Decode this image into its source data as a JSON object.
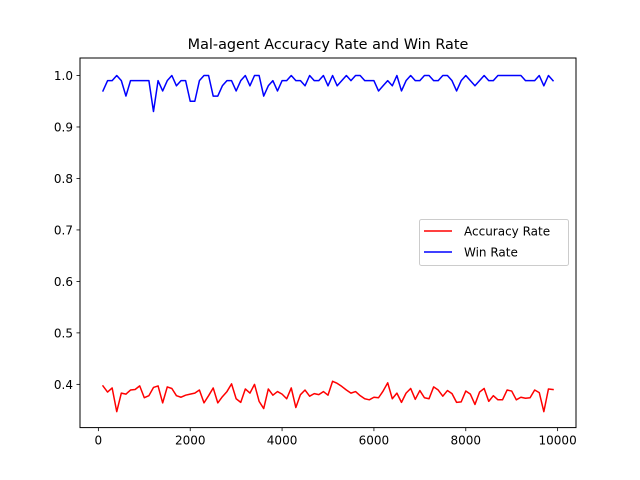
{
  "chart_data": {
    "type": "line",
    "title": "Mal-agent Accuracy Rate and Win Rate",
    "xlabel": "",
    "ylabel": "",
    "xlim": [
      -400,
      10400
    ],
    "ylim": [
      0.316,
      1.034
    ],
    "xticks": [
      0,
      2000,
      4000,
      6000,
      8000,
      10000
    ],
    "xtick_labels": [
      "0",
      "2000",
      "4000",
      "6000",
      "8000",
      "10000"
    ],
    "yticks": [
      0.4,
      0.5,
      0.6,
      0.7,
      0.8,
      0.9,
      1.0
    ],
    "ytick_labels": [
      "0.4",
      "0.5",
      "0.6",
      "0.7",
      "0.8",
      "0.9",
      "1.0"
    ],
    "grid": false,
    "legend_position": "center-right",
    "x": [
      100,
      200,
      300,
      400,
      500,
      600,
      700,
      800,
      900,
      1000,
      1100,
      1200,
      1300,
      1400,
      1500,
      1600,
      1700,
      1800,
      1900,
      2000,
      2100,
      2200,
      2300,
      2400,
      2500,
      2600,
      2700,
      2800,
      2900,
      3000,
      3100,
      3200,
      3300,
      3400,
      3500,
      3600,
      3700,
      3800,
      3900,
      4000,
      4100,
      4200,
      4300,
      4400,
      4500,
      4600,
      4700,
      4800,
      4900,
      5000,
      5100,
      5200,
      5300,
      5400,
      5500,
      5600,
      5700,
      5800,
      5900,
      6000,
      6100,
      6200,
      6300,
      6400,
      6500,
      6600,
      6700,
      6800,
      6900,
      7000,
      7100,
      7200,
      7300,
      7400,
      7500,
      7600,
      7700,
      7800,
      7900,
      8000,
      8100,
      8200,
      8300,
      8400,
      8500,
      8600,
      8700,
      8800,
      8900,
      9000,
      9100,
      9200,
      9300,
      9400,
      9500,
      9600,
      9700,
      9800,
      9900
    ],
    "series": [
      {
        "name": "Accuracy Rate",
        "color": "#ff0000",
        "values": [
          0.397,
          0.385,
          0.393,
          0.347,
          0.383,
          0.381,
          0.389,
          0.39,
          0.397,
          0.374,
          0.378,
          0.394,
          0.397,
          0.364,
          0.395,
          0.392,
          0.378,
          0.375,
          0.379,
          0.381,
          0.383,
          0.389,
          0.364,
          0.378,
          0.393,
          0.364,
          0.376,
          0.386,
          0.401,
          0.372,
          0.365,
          0.391,
          0.383,
          0.4,
          0.367,
          0.353,
          0.391,
          0.379,
          0.386,
          0.381,
          0.372,
          0.393,
          0.355,
          0.38,
          0.389,
          0.377,
          0.382,
          0.38,
          0.386,
          0.379,
          0.406,
          0.402,
          0.396,
          0.389,
          0.383,
          0.386,
          0.378,
          0.372,
          0.37,
          0.375,
          0.374,
          0.387,
          0.403,
          0.372,
          0.383,
          0.365,
          0.383,
          0.392,
          0.371,
          0.388,
          0.374,
          0.372,
          0.395,
          0.389,
          0.377,
          0.388,
          0.382,
          0.365,
          0.366,
          0.387,
          0.381,
          0.361,
          0.385,
          0.392,
          0.367,
          0.378,
          0.37,
          0.37,
          0.389,
          0.387,
          0.37,
          0.375,
          0.373,
          0.374,
          0.389,
          0.384,
          0.347,
          0.391,
          0.39
        ]
      },
      {
        "name": "Win Rate",
        "color": "#0000ff",
        "values": [
          0.97,
          0.99,
          0.99,
          1.0,
          0.99,
          0.96,
          0.99,
          0.99,
          0.99,
          0.99,
          0.99,
          0.93,
          0.99,
          0.97,
          0.99,
          1.0,
          0.98,
          0.99,
          0.99,
          0.95,
          0.95,
          0.99,
          1.0,
          1.0,
          0.96,
          0.96,
          0.98,
          0.99,
          0.99,
          0.97,
          0.99,
          1.0,
          0.98,
          1.0,
          1.0,
          0.96,
          0.98,
          0.99,
          0.97,
          0.99,
          0.99,
          1.0,
          0.99,
          0.99,
          0.98,
          1.0,
          0.99,
          0.99,
          1.0,
          0.98,
          1.0,
          0.98,
          0.99,
          1.0,
          0.99,
          1.0,
          1.0,
          0.99,
          0.99,
          0.99,
          0.97,
          0.98,
          0.99,
          0.98,
          1.0,
          0.97,
          0.99,
          1.0,
          0.99,
          0.99,
          1.0,
          1.0,
          0.99,
          0.99,
          1.0,
          1.0,
          0.99,
          0.97,
          0.99,
          1.0,
          0.99,
          0.98,
          0.99,
          1.0,
          0.99,
          0.99,
          1.0,
          1.0,
          1.0,
          1.0,
          1.0,
          1.0,
          0.99,
          0.99,
          0.99,
          1.0,
          0.98,
          1.0,
          0.99
        ]
      }
    ]
  }
}
